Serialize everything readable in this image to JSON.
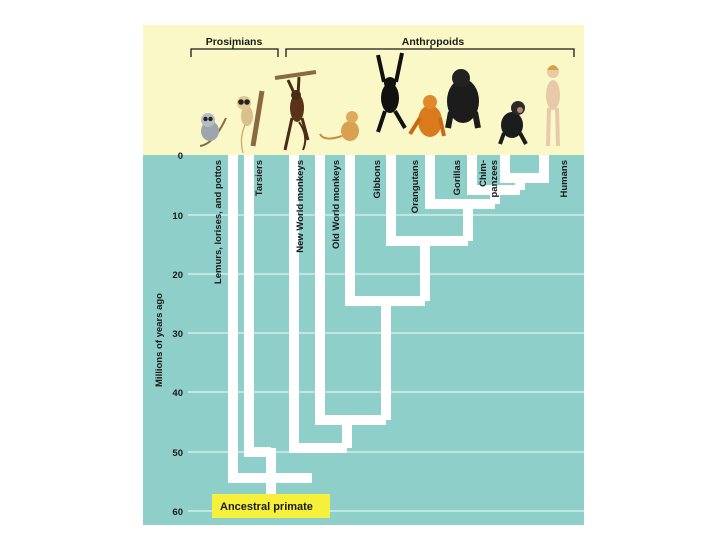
{
  "groups": {
    "prosimians": "Prosimians",
    "anthropoids": "Anthropoids"
  },
  "taxa": [
    "Lemurs, lorises, and pottos",
    "Tarsiers",
    "New World monkeys",
    "Old World monkeys",
    "Gibbons",
    "Orangutans",
    "Gorillas",
    [
      "Chim-",
      "panzees"
    ],
    "Humans"
  ],
  "axis": {
    "label": "Millions of years ago",
    "ticks": [
      "0",
      "10",
      "20",
      "30",
      "40",
      "50",
      "60"
    ]
  },
  "root_label": "Ancestral primate",
  "colors": {
    "background": "#8ecfc9",
    "header": "#fbf8c8",
    "branches": "#ffffff",
    "grid": "#f2fbfa",
    "root_box": "#f7f03a"
  },
  "icons": [
    "lemur-icon",
    "tarsier-icon",
    "spider-monkey-icon",
    "macaque-icon",
    "gibbon-icon",
    "orangutan-icon",
    "gorilla-icon",
    "chimpanzee-icon",
    "human-icon"
  ]
}
